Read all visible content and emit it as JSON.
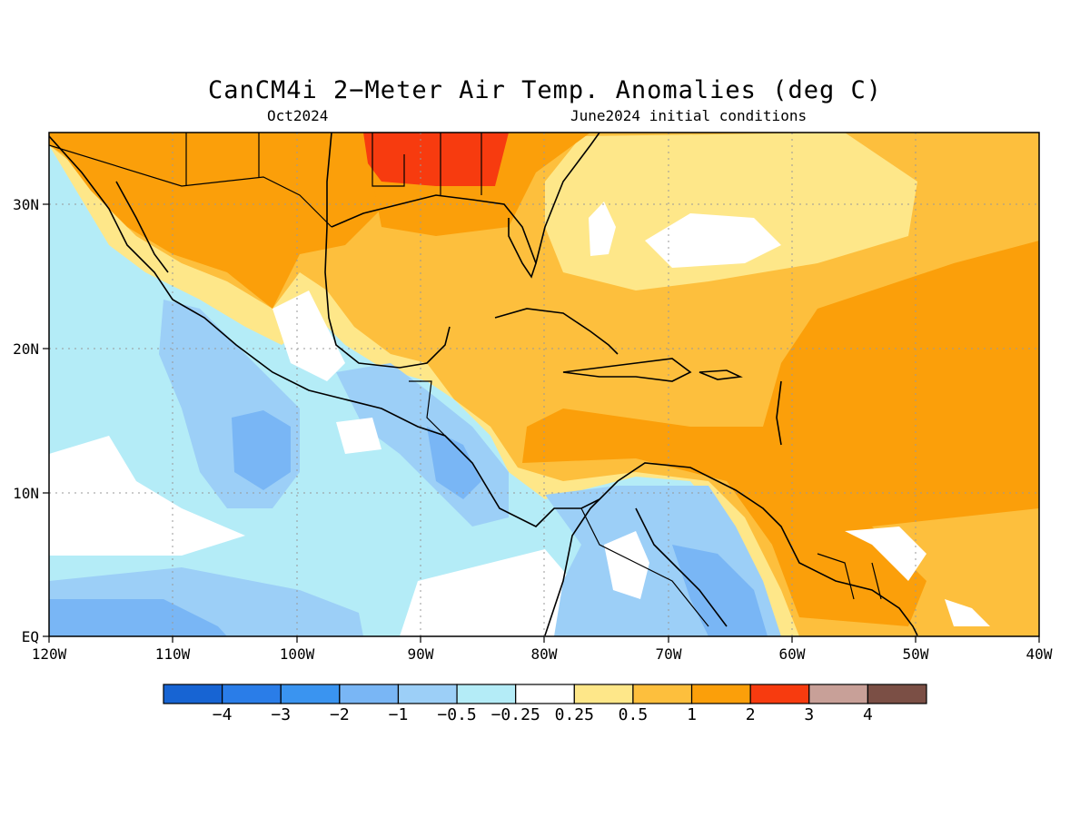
{
  "title": "CanCM4i 2−Meter Air Temp. Anomalies (deg C)",
  "subtitle_left": "Oct2024",
  "subtitle_right": "June2024 initial conditions",
  "map": {
    "lon_range": [
      -120,
      -40
    ],
    "lat_range": [
      0,
      35
    ],
    "x_ticks": [
      "120W",
      "110W",
      "100W",
      "90W",
      "80W",
      "70W",
      "60W",
      "50W",
      "40W"
    ],
    "y_ticks": [
      "EQ",
      "10N",
      "20N",
      "30N"
    ],
    "grid": true
  },
  "colorbar": {
    "bins": [
      {
        "color": "#1764d3"
      },
      {
        "color": "#2a7de8"
      },
      {
        "color": "#3a94f0"
      },
      {
        "color": "#79b6f5"
      },
      {
        "color": "#9ccff7"
      },
      {
        "color": "#b4ecf7"
      },
      {
        "color": "#ffffff"
      },
      {
        "color": "#fee789"
      },
      {
        "color": "#fdbf3d"
      },
      {
        "color": "#fb9f0a"
      },
      {
        "color": "#f73b0f"
      },
      {
        "color": "#c8a098"
      },
      {
        "color": "#7b4f45"
      }
    ],
    "labels": [
      "−4",
      "−3",
      "−2",
      "−1",
      "−0.5",
      "−0.25",
      "0.25",
      "0.5",
      "1",
      "2",
      "3",
      "4"
    ]
  }
}
